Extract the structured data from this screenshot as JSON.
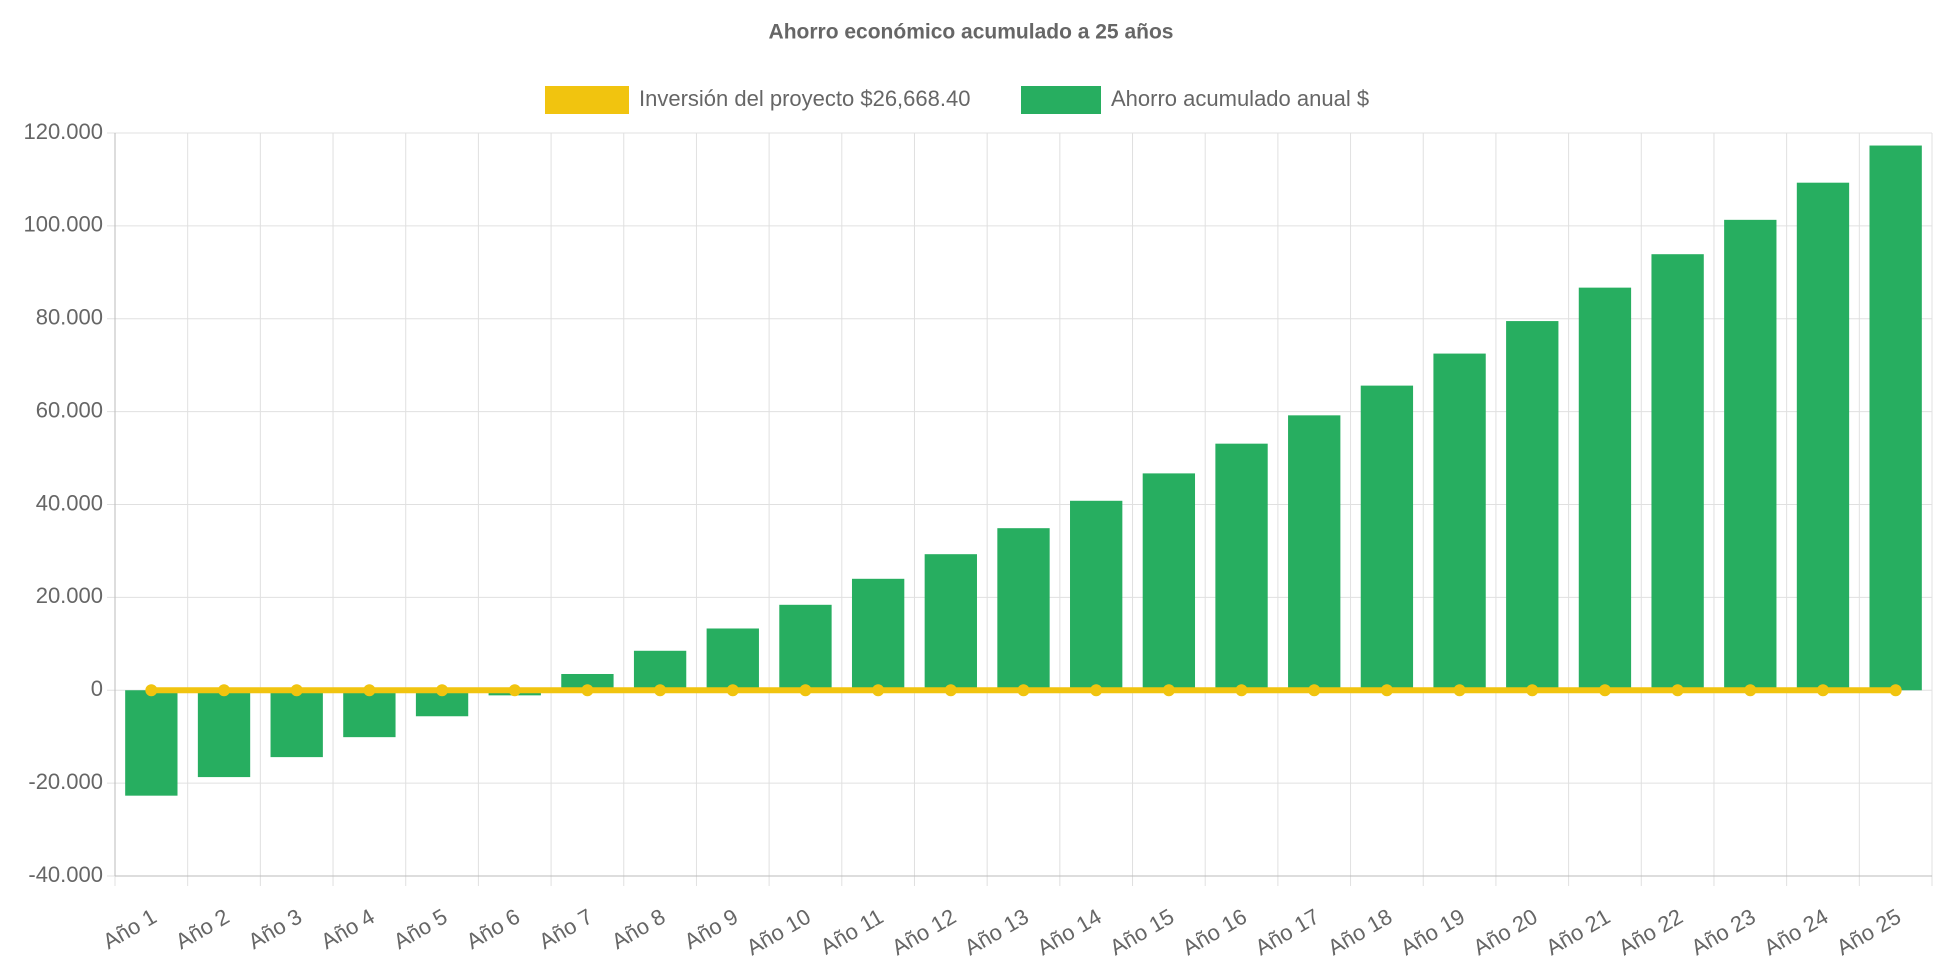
{
  "chart_data": {
    "type": "bar",
    "title": "Ahorro económico acumulado a 25 años",
    "categories": [
      "Año 1",
      "Año 2",
      "Año 3",
      "Año 4",
      "Año 5",
      "Año 6",
      "Año 7",
      "Año 8",
      "Año 9",
      "Año 10",
      "Año 11",
      "Año 12",
      "Año 13",
      "Año 14",
      "Año 15",
      "Año 16",
      "Año 17",
      "Año 18",
      "Año 19",
      "Año 20",
      "Año 21",
      "Año 22",
      "Año 23",
      "Año 24",
      "Año 25"
    ],
    "series": [
      {
        "name": "Inversión del proyecto $26,668.40",
        "type": "line",
        "color": "#f1c40f",
        "values": [
          0,
          0,
          0,
          0,
          0,
          0,
          0,
          0,
          0,
          0,
          0,
          0,
          0,
          0,
          0,
          0,
          0,
          0,
          0,
          0,
          0,
          0,
          0,
          0,
          0
        ]
      },
      {
        "name": "Ahorro acumulado anual $",
        "type": "bar",
        "color": "#27ae60",
        "values": [
          -22700,
          -18700,
          -14400,
          -10100,
          -5600,
          -1100,
          3500,
          8500,
          13300,
          18400,
          24000,
          29300,
          34900,
          40800,
          46700,
          53100,
          59200,
          65600,
          72500,
          79500,
          86700,
          93900,
          101300,
          109300,
          117300
        ]
      }
    ],
    "ylim": [
      -40000,
      120000
    ],
    "yticks": [
      {
        "value": -40000,
        "label": "-40.000"
      },
      {
        "value": -20000,
        "label": "-20.000"
      },
      0,
      {
        "value": 20000,
        "label": "20.000"
      },
      {
        "value": 40000,
        "label": "40.000"
      },
      {
        "value": 60000,
        "label": "60.000"
      },
      {
        "value": 80000,
        "label": "80.000"
      },
      {
        "value": 100000,
        "label": "100.000"
      },
      {
        "value": 120000,
        "label": "120.000"
      }
    ],
    "grid": true
  }
}
